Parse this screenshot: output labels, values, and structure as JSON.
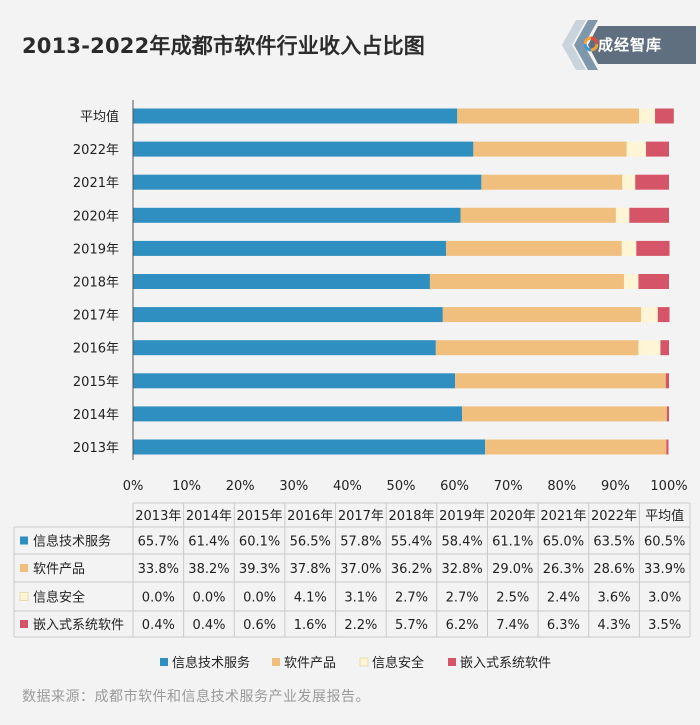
{
  "header": {
    "title": "2013-2022年成都市软件行业收入占比图",
    "logo_text": "成经智库"
  },
  "footer": {
    "source": "数据来源：成都市软件和信息技术服务产业发展报告。"
  },
  "colors": {
    "信息技术服务": "#2f8fc1",
    "软件产品": "#f0bf7d",
    "信息安全": "#fdf5d6",
    "嵌入式系统软件": "#d65468"
  },
  "chart_data": {
    "type": "bar",
    "orientation": "horizontal",
    "stacked": "percent",
    "categories": [
      "平均值",
      "2022年",
      "2021年",
      "2020年",
      "2019年",
      "2018年",
      "2017年",
      "2016年",
      "2015年",
      "2014年",
      "2013年"
    ],
    "xlim": [
      0,
      100
    ],
    "x_ticks": [
      "0%",
      "10%",
      "20%",
      "30%",
      "40%",
      "50%",
      "60%",
      "70%",
      "80%",
      "90%",
      "100%"
    ],
    "grid": false,
    "legend_position": "bottom",
    "series": [
      {
        "name": "信息技术服务",
        "values": [
          60.5,
          63.5,
          65.0,
          61.1,
          58.4,
          55.4,
          57.8,
          56.5,
          60.1,
          61.4,
          65.7
        ]
      },
      {
        "name": "软件产品",
        "values": [
          33.9,
          28.6,
          26.3,
          29.0,
          32.8,
          36.2,
          37.0,
          37.8,
          39.3,
          38.2,
          33.8
        ]
      },
      {
        "name": "信息安全",
        "values": [
          3.0,
          3.6,
          2.4,
          2.5,
          2.7,
          2.7,
          3.1,
          4.1,
          0.0,
          0.0,
          0.0
        ]
      },
      {
        "name": "嵌入式系统软件",
        "values": [
          3.5,
          4.3,
          6.3,
          7.4,
          6.2,
          5.7,
          2.2,
          1.6,
          0.6,
          0.4,
          0.4
        ]
      }
    ],
    "table": {
      "columns": [
        "2013年",
        "2014年",
        "2015年",
        "2016年",
        "2017年",
        "2018年",
        "2019年",
        "2020年",
        "2021年",
        "2022年",
        "平均值"
      ],
      "rows": [
        {
          "name": "信息技术服务",
          "cells": [
            "65.7%",
            "61.4%",
            "60.1%",
            "56.5%",
            "57.8%",
            "55.4%",
            "58.4%",
            "61.1%",
            "65.0%",
            "63.5%",
            "60.5%"
          ]
        },
        {
          "name": "软件产品",
          "cells": [
            "33.8%",
            "38.2%",
            "39.3%",
            "37.8%",
            "37.0%",
            "36.2%",
            "32.8%",
            "29.0%",
            "26.3%",
            "28.6%",
            "33.9%"
          ]
        },
        {
          "name": "信息安全",
          "cells": [
            "0.0%",
            "0.0%",
            "0.0%",
            "4.1%",
            "3.1%",
            "2.7%",
            "2.7%",
            "2.5%",
            "2.4%",
            "3.6%",
            "3.0%"
          ]
        },
        {
          "name": "嵌入式系统软件",
          "cells": [
            "0.4%",
            "0.4%",
            "0.6%",
            "1.6%",
            "2.2%",
            "5.7%",
            "6.2%",
            "7.4%",
            "6.3%",
            "4.3%",
            "3.5%"
          ]
        }
      ]
    }
  }
}
